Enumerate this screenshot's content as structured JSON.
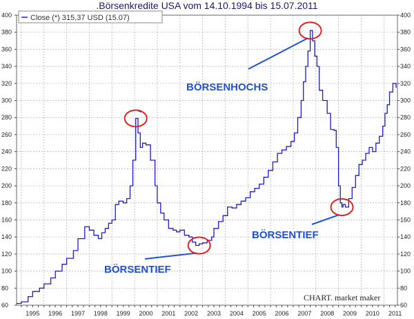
{
  "chart_data": {
    "type": "line",
    "title": ".Börsenkredite USA vom 14.10.1994 bis 15.07.2011",
    "legend": "Close (*) 315,37 USD (15.07)",
    "watermark": "CHART. market maker",
    "ylim": [
      60,
      400
    ],
    "y_ticks": [
      60,
      80,
      100,
      120,
      140,
      160,
      180,
      200,
      220,
      240,
      260,
      280,
      300,
      320,
      340,
      360,
      380,
      400
    ],
    "x_tick_labels": [
      "1995",
      "1996",
      "1997",
      "1998",
      "1999",
      "2000",
      "2001",
      "2002",
      "2003",
      "2004",
      "2005",
      "2006",
      "2007",
      "2008",
      "2009",
      "2010",
      "2011"
    ],
    "grid": true,
    "legend_position": "top-left",
    "line_color": "#1a1acc",
    "annotation_color": "#1f4fd6",
    "circle_color": "#dd2222",
    "series": [
      {
        "x": [
          1994.79,
          1995.0,
          1995.3,
          1995.5,
          1995.8,
          1996.0,
          1996.3,
          1996.5,
          1996.8,
          1997.0,
          1997.3,
          1997.5,
          1997.8,
          1998.0,
          1998.2,
          1998.4,
          1998.55,
          1998.7,
          1998.85,
          1999.0,
          1999.15,
          1999.3,
          1999.5,
          1999.65,
          1999.8,
          1999.92,
          2000.05,
          2000.15,
          2000.25,
          2000.35,
          2000.5,
          2000.7,
          2000.9,
          2001.0,
          2001.15,
          2001.3,
          2001.5,
          2001.7,
          2001.85,
          2002.0,
          2002.2,
          2002.4,
          2002.55,
          2002.7,
          2002.85,
          2003.0,
          2003.2,
          2003.4,
          2003.5,
          2003.7,
          2003.9,
          2004.1,
          2004.3,
          2004.5,
          2004.7,
          2004.9,
          2005.1,
          2005.3,
          2005.5,
          2005.7,
          2005.9,
          2006.1,
          2006.3,
          2006.5,
          2006.7,
          2006.9,
          2007.05,
          2007.2,
          2007.35,
          2007.45,
          2007.55,
          2007.65,
          2007.75,
          2007.85,
          2007.95,
          2008.05,
          2008.15,
          2008.3,
          2008.5,
          2008.65,
          2008.8,
          2008.9,
          2009.0,
          2009.08,
          2009.15,
          2009.2,
          2009.3,
          2009.45,
          2009.6,
          2009.75,
          2009.9,
          2010.05,
          2010.2,
          2010.35,
          2010.5,
          2010.65,
          2010.8,
          2010.95,
          2011.05,
          2011.15,
          2011.25,
          2011.4,
          2011.54
        ],
        "y": [
          62,
          64,
          70,
          76,
          80,
          85,
          92,
          100,
          108,
          115,
          124,
          138,
          152,
          148,
          142,
          138,
          145,
          150,
          156,
          160,
          178,
          182,
          180,
          185,
          200,
          230,
          279,
          262,
          245,
          250,
          248,
          230,
          200,
          180,
          168,
          160,
          150,
          148,
          146,
          148,
          142,
          140,
          134,
          130,
          132,
          133,
          136,
          140,
          150,
          158,
          165,
          175,
          174,
          178,
          182,
          186,
          193,
          197,
          202,
          210,
          218,
          228,
          238,
          242,
          246,
          252,
          262,
          280,
          300,
          322,
          340,
          358,
          382,
          370,
          352,
          340,
          312,
          300,
          285,
          266,
          265,
          245,
          200,
          180,
          175,
          178,
          175,
          185,
          198,
          212,
          225,
          230,
          238,
          245,
          240,
          250,
          258,
          270,
          285,
          295,
          310,
          320,
          315
        ]
      }
    ],
    "annotations": [
      {
        "text": "BÖRSENHOCHS",
        "points_to": [
          2000.05,
          279
        ]
      },
      {
        "text": "BÖRSENHOCHS",
        "points_to": [
          2007.75,
          382
        ]
      },
      {
        "text": "BÖRSENTIEF",
        "points_to": [
          2002.85,
          130
        ]
      },
      {
        "text": "BÖRSENTIEF",
        "points_to": [
          2009.15,
          175
        ]
      }
    ]
  }
}
